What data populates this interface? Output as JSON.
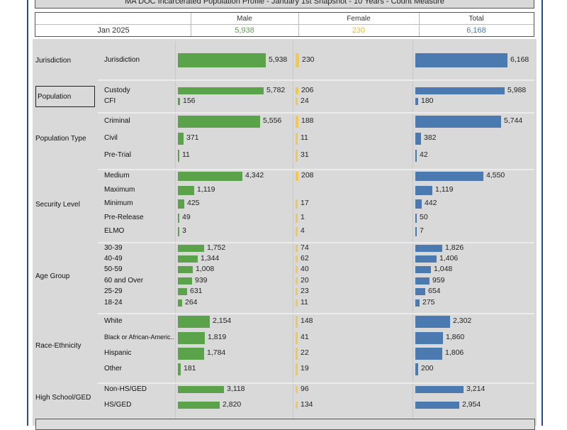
{
  "title": "MA DOC Incarcerated Population Profile - January 1st Snapshot - 10 Years - Count Measure",
  "header": {
    "period": "Jan 2025",
    "columns": [
      {
        "label": "Male",
        "value": "5,938",
        "color": "#5aa34b"
      },
      {
        "label": "Female",
        "value": "230",
        "color": "#e6c02a"
      },
      {
        "label": "Total",
        "value": "6,168",
        "color": "#4a7ab0"
      }
    ]
  },
  "colors": {
    "male": "#5aa34b",
    "female": "#f2c94c",
    "total": "#4a7ab0"
  },
  "chart_data": {
    "type": "bar",
    "title": "MA DOC Incarcerated Population Profile - January 1st Snapshot - 10 Years - Count Measure",
    "series_names": [
      "Male",
      "Female",
      "Total"
    ],
    "groups": [
      {
        "name": "Jurisdiction",
        "boxed": false,
        "categories": [
          {
            "label": "Jurisdiction",
            "male": 5938,
            "female": 230,
            "total": 6168
          }
        ]
      },
      {
        "name": "Population",
        "boxed": true,
        "categories": [
          {
            "label": "Custody",
            "male": 5782,
            "female": 206,
            "total": 5988
          },
          {
            "label": "CFI",
            "male": 156,
            "female": 24,
            "total": 180
          }
        ]
      },
      {
        "name": "Population Type",
        "boxed": false,
        "categories": [
          {
            "label": "Criminal",
            "male": 5556,
            "female": 188,
            "total": 5744
          },
          {
            "label": "Civil",
            "male": 371,
            "female": 11,
            "total": 382
          },
          {
            "label": "Pre-Trial",
            "male": 11,
            "female": 31,
            "total": 42
          }
        ]
      },
      {
        "name": "Security Level",
        "boxed": false,
        "categories": [
          {
            "label": "Medium",
            "male": 4342,
            "female": 208,
            "total": 4550
          },
          {
            "label": "Maximum",
            "male": 1119,
            "female": null,
            "total": 1119
          },
          {
            "label": "Minimum",
            "male": 425,
            "female": 17,
            "total": 442
          },
          {
            "label": "Pre-Release",
            "male": 49,
            "female": 1,
            "total": 50
          },
          {
            "label": "ELMO",
            "male": 3,
            "female": 4,
            "total": 7
          }
        ]
      },
      {
        "name": "Age Group",
        "boxed": false,
        "categories": [
          {
            "label": "30-39",
            "male": 1752,
            "female": 74,
            "total": 1826
          },
          {
            "label": "40-49",
            "male": 1344,
            "female": 62,
            "total": 1406
          },
          {
            "label": "50-59",
            "male": 1008,
            "female": 40,
            "total": 1048
          },
          {
            "label": "60 and Over",
            "male": 939,
            "female": 20,
            "total": 959
          },
          {
            "label": "25-29",
            "male": 631,
            "female": 23,
            "total": 654
          },
          {
            "label": "18-24",
            "male": 264,
            "female": 11,
            "total": 275
          }
        ]
      },
      {
        "name": "Race-Ethnicity",
        "boxed": false,
        "categories": [
          {
            "label": "White",
            "male": 2154,
            "female": 148,
            "total": 2302
          },
          {
            "label": "Black or African-Americ..",
            "male": 1819,
            "female": 41,
            "total": 1860
          },
          {
            "label": "Hispanic",
            "male": 1784,
            "female": 22,
            "total": 1806
          },
          {
            "label": "Other",
            "male": 181,
            "female": 19,
            "total": 200
          }
        ]
      },
      {
        "name": "High School/GED",
        "boxed": false,
        "categories": [
          {
            "label": "Non-HS/GED",
            "male": 3118,
            "female": 96,
            "total": 3214
          },
          {
            "label": "HS/GED",
            "male": 2820,
            "female": 134,
            "total": 2954
          }
        ]
      }
    ]
  }
}
